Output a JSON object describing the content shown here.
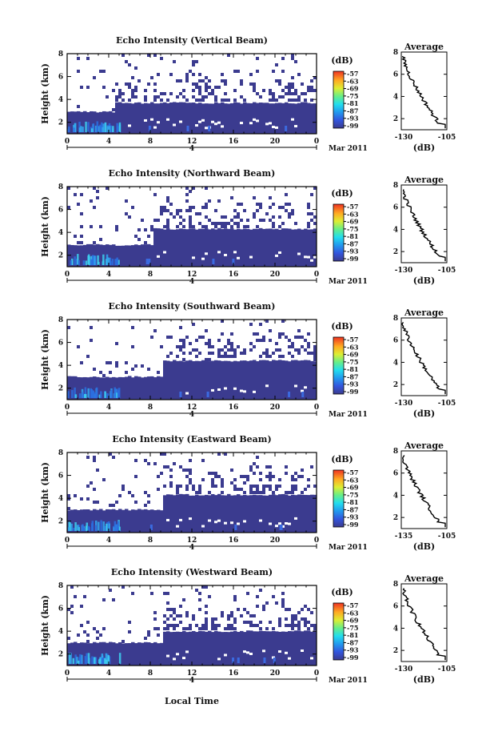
{
  "figure": {
    "bottom_label": "Local Time",
    "date_label": "Mar 2011",
    "day_label": "4"
  },
  "chart_data": [
    {
      "type": "heatmap",
      "title": "Echo Intensity (Vertical Beam)",
      "ylabel": "Height (km)",
      "x_ticks": [
        "0",
        "4",
        "8",
        "12",
        "16",
        "20",
        "0"
      ],
      "y_ticks": [
        "2",
        "4",
        "6",
        "8"
      ],
      "xlim": [
        0,
        24
      ],
      "ylim": [
        1,
        8
      ],
      "colorbar": {
        "unit": "(dB)",
        "labels": [
          "-57",
          "-63",
          "-69",
          "-75",
          "-81",
          "-87",
          "-93",
          "-99"
        ]
      },
      "profile": {
        "title": "Average",
        "xlabel": "(dB)",
        "x_ticks": [
          "-130",
          "-105"
        ],
        "y_ticks": [
          "2",
          "4",
          "6",
          "8"
        ]
      },
      "transition_hour": 4.5,
      "layer_top_before": 2.9,
      "layer_top_after": 3.7
    },
    {
      "type": "heatmap",
      "title": "Echo Intensity (Northward Beam)",
      "ylabel": "Height (km)",
      "x_ticks": [
        "0",
        "4",
        "8",
        "12",
        "16",
        "20",
        "0"
      ],
      "y_ticks": [
        "2",
        "4",
        "6",
        "8"
      ],
      "xlim": [
        0,
        24
      ],
      "ylim": [
        1,
        8
      ],
      "colorbar": {
        "unit": "(dB)",
        "labels": [
          "-57",
          "-63",
          "-69",
          "-75",
          "-81",
          "-87",
          "-93",
          "-99"
        ]
      },
      "profile": {
        "title": "Average",
        "xlabel": "(dB)",
        "x_ticks": [
          "-130",
          "-105"
        ],
        "y_ticks": [
          "2",
          "4",
          "6",
          "8"
        ]
      },
      "transition_hour": 8.3,
      "layer_top_before": 2.9,
      "layer_top_after": 4.3
    },
    {
      "type": "heatmap",
      "title": "Echo Intensity (Southward Beam)",
      "ylabel": "Height (km)",
      "x_ticks": [
        "0",
        "4",
        "8",
        "12",
        "16",
        "20",
        "0"
      ],
      "y_ticks": [
        "2",
        "4",
        "6",
        "8"
      ],
      "xlim": [
        0,
        24
      ],
      "ylim": [
        1,
        8
      ],
      "colorbar": {
        "unit": "(dB)",
        "labels": [
          "-57",
          "-63",
          "-69",
          "-75",
          "-81",
          "-87",
          "-93",
          "-99"
        ]
      },
      "profile": {
        "title": "Average",
        "xlabel": "(dB)",
        "x_ticks": [
          "-130",
          "-105"
        ],
        "y_ticks": [
          "2",
          "4",
          "6",
          "8"
        ]
      },
      "transition_hour": 9.2,
      "layer_top_before": 3.0,
      "layer_top_after": 4.4
    },
    {
      "type": "heatmap",
      "title": "Echo Intensity (Eastward Beam)",
      "ylabel": "Height (km)",
      "x_ticks": [
        "0",
        "4",
        "8",
        "12",
        "16",
        "20",
        "0"
      ],
      "y_ticks": [
        "2",
        "4",
        "6",
        "8"
      ],
      "xlim": [
        0,
        24
      ],
      "ylim": [
        1,
        8
      ],
      "colorbar": {
        "unit": "(dB)",
        "labels": [
          "-57",
          "-63",
          "-69",
          "-75",
          "-81",
          "-87",
          "-93",
          "-99"
        ]
      },
      "profile": {
        "title": "Average",
        "xlabel": "(dB)",
        "x_ticks": [
          "-135",
          "-105"
        ],
        "y_ticks": [
          "2",
          "4",
          "6",
          "8"
        ]
      },
      "transition_hour": 9.2,
      "layer_top_before": 3.0,
      "layer_top_after": 4.3
    },
    {
      "type": "heatmap",
      "title": "Echo Intensity (Westward Beam)",
      "ylabel": "Height (km)",
      "x_ticks": [
        "0",
        "4",
        "8",
        "12",
        "16",
        "20",
        "0"
      ],
      "y_ticks": [
        "2",
        "4",
        "6",
        "8"
      ],
      "xlim": [
        0,
        24
      ],
      "ylim": [
        1,
        8
      ],
      "colorbar": {
        "unit": "(dB)",
        "labels": [
          "-57",
          "-63",
          "-69",
          "-75",
          "-81",
          "-87",
          "-93",
          "-99"
        ]
      },
      "profile": {
        "title": "Average",
        "xlabel": "(dB)",
        "x_ticks": [
          "-130",
          "-105"
        ],
        "y_ticks": [
          "2",
          "4",
          "6",
          "8"
        ]
      },
      "transition_hour": 9.2,
      "layer_top_before": 3.0,
      "layer_top_after": 4.0
    }
  ]
}
